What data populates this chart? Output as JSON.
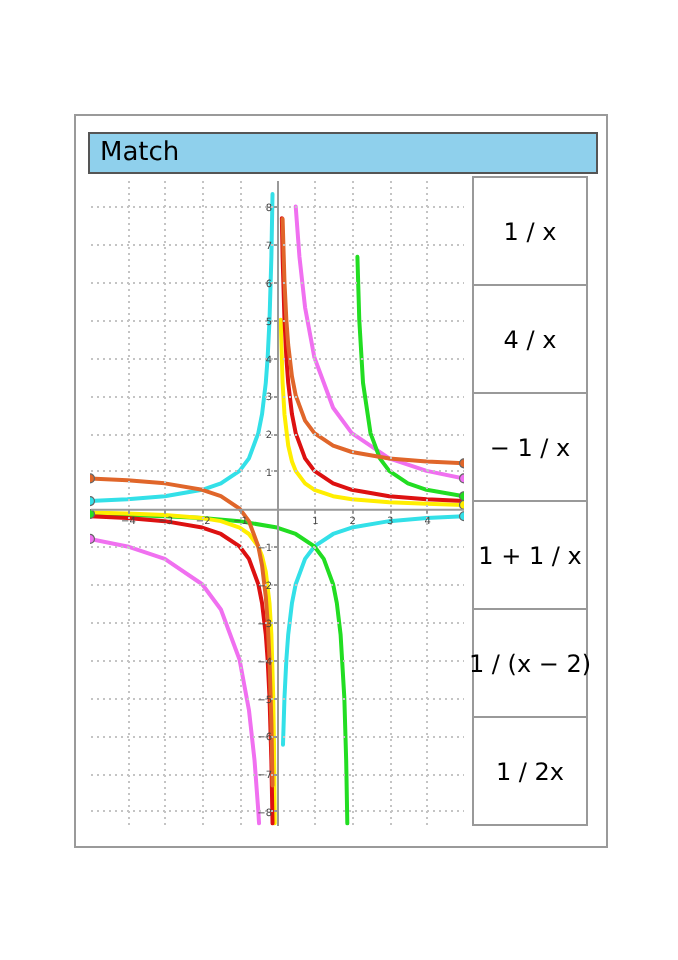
{
  "chart_data": [
    {
      "type": "line",
      "title": "Match",
      "xlim": [
        -5,
        5
      ],
      "ylim": [
        -8.4,
        8.7
      ],
      "xticks": [
        -4,
        -3,
        -2,
        -1,
        1,
        2,
        3,
        4
      ],
      "yticks": [
        -8,
        -7,
        -6,
        -5,
        -4,
        -3,
        -2,
        -1,
        1,
        2,
        3,
        4,
        5,
        6,
        7,
        8
      ],
      "grid": true,
      "series": [
        {
          "color": "#33e0e8",
          "x": [
            -5,
            -4,
            -3,
            -2,
            -1.5,
            -1,
            -0.75,
            -0.5,
            -0.4,
            -0.3,
            -0.25,
            -0.2,
            -0.15,
            -0.12,
            0,
            0.16,
            0.2,
            0.25,
            0.3,
            0.4,
            0.5,
            0.75,
            1,
            1.5,
            2,
            3,
            4,
            5
          ],
          "values": [
            0.2,
            0.25,
            0.33,
            0.5,
            0.67,
            1,
            1.33,
            2,
            2.5,
            3.33,
            4,
            5,
            6.67,
            8.33,
            null,
            -6.25,
            -5,
            -4,
            -3.33,
            -2.5,
            -2,
            -1.33,
            -1,
            -0.67,
            -0.5,
            -0.33,
            -0.25,
            -0.2
          ]
        },
        {
          "color": "#f070f0",
          "x": [
            -5,
            -4,
            -3,
            -2,
            -1.5,
            -1,
            -0.75,
            -0.6,
            -0.5,
            -0.48,
            0,
            0.5,
            0.6,
            0.75,
            1,
            1.5,
            2,
            3,
            4,
            5
          ],
          "values": [
            -0.8,
            -1,
            -1.33,
            -2,
            -2.67,
            -4,
            -5.33,
            -6.67,
            -8,
            -8.33,
            null,
            8,
            6.67,
            5.33,
            4,
            2.67,
            2,
            1.33,
            1,
            0.8
          ]
        },
        {
          "color": "#22dd22",
          "x": [
            -5,
            -4,
            -3,
            -2,
            -1,
            0,
            0.5,
            1,
            1.25,
            1.5,
            1.6,
            1.7,
            1.8,
            1.85,
            1.88,
            2,
            2.15,
            2.2,
            2.3,
            2.5,
            2.75,
            3,
            3.5,
            4,
            5
          ],
          "values": [
            -0.14,
            -0.17,
            -0.2,
            -0.25,
            -0.33,
            -0.5,
            -0.67,
            -1,
            -1.33,
            -2,
            -2.5,
            -3.33,
            -5,
            -6.67,
            -8.33,
            null,
            6.67,
            5,
            3.33,
            2,
            1.33,
            1,
            0.67,
            0.5,
            0.33
          ]
        },
        {
          "color": "#ffee00",
          "x": [
            -5,
            -4,
            -3,
            -2,
            -1.5,
            -1,
            -0.75,
            -0.5,
            -0.4,
            -0.3,
            -0.2,
            -0.15,
            -0.1,
            -0.08,
            -0.06,
            0,
            0.1,
            0.15,
            0.2,
            0.3,
            0.4,
            0.5,
            0.75,
            1,
            1.5,
            2,
            3,
            4,
            5
          ],
          "values": [
            -0.1,
            -0.13,
            -0.17,
            -0.25,
            -0.33,
            -0.5,
            -0.67,
            -1,
            -1.25,
            -1.67,
            -2.5,
            -3.33,
            -5,
            -6.25,
            -8.33,
            null,
            5,
            3.33,
            2.5,
            1.67,
            1.25,
            1,
            0.67,
            0.5,
            0.33,
            0.25,
            0.17,
            0.13,
            0.1
          ]
        },
        {
          "color": "#dd1111",
          "x": [
            -5,
            -4,
            -3,
            -2,
            -1.5,
            -1,
            -0.75,
            -0.5,
            -0.4,
            -0.3,
            -0.25,
            -0.2,
            -0.15,
            -0.12,
            0,
            0.13,
            0.15,
            0.2,
            0.25,
            0.3,
            0.4,
            0.5,
            0.75,
            1,
            1.5,
            2,
            3,
            4,
            5
          ],
          "values": [
            -0.2,
            -0.25,
            -0.33,
            -0.5,
            -0.67,
            -1,
            -1.33,
            -2,
            -2.5,
            -3.33,
            -4,
            -5,
            -6.67,
            -8.33,
            null,
            7.69,
            6.67,
            5,
            4,
            3.33,
            2.5,
            2,
            1.33,
            1,
            0.67,
            0.5,
            0.33,
            0.25,
            0.2
          ]
        },
        {
          "color": "#e0662a",
          "x": [
            -5,
            -4,
            -3,
            -2,
            -1.5,
            -1,
            -0.75,
            -0.5,
            -0.4,
            -0.3,
            -0.25,
            -0.2,
            -0.15,
            -0.12,
            0,
            0.15,
            0.2,
            0.25,
            0.3,
            0.4,
            0.5,
            0.75,
            1,
            1.5,
            2,
            3,
            4,
            5
          ],
          "values": [
            0.8,
            0.75,
            0.67,
            0.5,
            0.33,
            0,
            -0.33,
            -1,
            -1.5,
            -2.33,
            -3,
            -4,
            -5.67,
            -7.33,
            null,
            7.67,
            6,
            5,
            4.33,
            3.5,
            3,
            2.33,
            2,
            1.67,
            1.5,
            1.33,
            1.25,
            1.2
          ]
        },
        {
          "type": "scatter",
          "marker": "circle",
          "x": [
            -5,
            -5,
            -5,
            -5,
            5,
            5,
            5,
            5,
            5
          ],
          "values": [
            0.2,
            -0.8,
            -0.14,
            0.8,
            -0.2,
            0.8,
            0.1,
            0.33,
            1.2
          ],
          "colors": [
            "#33e0e8",
            "#f070f0",
            "#22dd22",
            "#e0662a",
            "#33e0e8",
            "#f070f0",
            "#ffee00",
            "#22dd22",
            "#e0662a"
          ]
        }
      ]
    },
    {
      "type": "other",
      "annotations": [
        "1 / x",
        "4 / x",
        "− 1 / x",
        "1 + 1 / x",
        "1 / (x − 2)",
        "1 / 2x"
      ]
    }
  ]
}
